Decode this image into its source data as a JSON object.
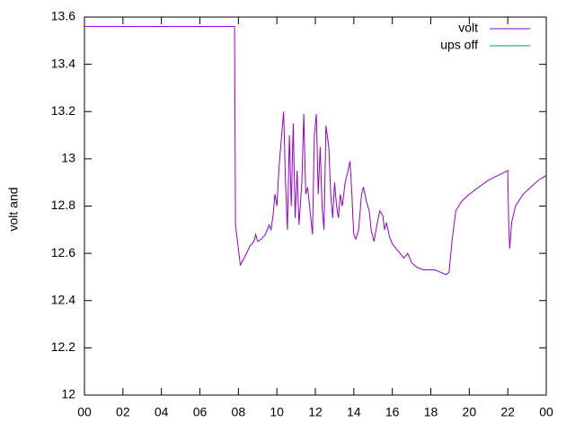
{
  "chart_data": {
    "type": "line",
    "ylabel": "volt and",
    "xlim": [
      0,
      24
    ],
    "xticks": [
      {
        "value": 0,
        "label": "00"
      },
      {
        "value": 2,
        "label": "02"
      },
      {
        "value": 4,
        "label": "04"
      },
      {
        "value": 6,
        "label": "06"
      },
      {
        "value": 8,
        "label": "08"
      },
      {
        "value": 10,
        "label": "10"
      },
      12,
      14,
      16,
      18,
      20,
      22,
      {
        "value": 24,
        "label": "00"
      }
    ],
    "ylim": [
      12,
      13.6
    ],
    "yticks": [
      12,
      12.2,
      12.4,
      12.6,
      12.8,
      13,
      13.2,
      13.4,
      13.6
    ],
    "legend": "top-right",
    "series": [
      {
        "name": "volt",
        "color": "#9400d3",
        "x": [
          0,
          7.8,
          7.85,
          8.0,
          8.1,
          8.3,
          8.6,
          8.8,
          8.9,
          9.0,
          9.2,
          9.4,
          9.5,
          9.6,
          9.7,
          9.8,
          9.9,
          10.0,
          10.1,
          10.2,
          10.35,
          10.45,
          10.55,
          10.65,
          10.75,
          10.85,
          10.95,
          11.05,
          11.15,
          11.3,
          11.4,
          11.5,
          11.6,
          11.7,
          11.85,
          11.95,
          12.05,
          12.15,
          12.25,
          12.35,
          12.45,
          12.55,
          12.7,
          12.8,
          12.9,
          13.0,
          13.1,
          13.2,
          13.3,
          13.4,
          13.55,
          13.7,
          13.8,
          13.9,
          13.95,
          14.0,
          14.1,
          14.25,
          14.4,
          14.5,
          14.65,
          14.8,
          14.9,
          15.05,
          15.2,
          15.35,
          15.5,
          15.6,
          15.7,
          15.85,
          16.0,
          16.2,
          16.4,
          16.6,
          16.8,
          17.0,
          17.3,
          17.6,
          17.9,
          18.2,
          18.5,
          18.8,
          18.95,
          19.1,
          19.3,
          19.6,
          20.0,
          20.5,
          21.0,
          21.5,
          22.0,
          22.05,
          22.1,
          22.2,
          22.4,
          22.8,
          23.2,
          23.6,
          24.0
        ],
        "values": [
          13.56,
          13.56,
          12.72,
          12.62,
          12.55,
          12.58,
          12.63,
          12.65,
          12.68,
          12.65,
          12.66,
          12.68,
          12.7,
          12.72,
          12.7,
          12.76,
          12.85,
          12.8,
          12.95,
          13.05,
          13.2,
          12.9,
          12.7,
          13.1,
          12.8,
          13.15,
          12.75,
          12.95,
          12.72,
          12.9,
          13.19,
          12.85,
          12.88,
          12.8,
          12.68,
          13.1,
          13.19,
          12.85,
          13.05,
          12.8,
          12.7,
          13.14,
          13.05,
          12.85,
          12.75,
          12.9,
          12.8,
          12.75,
          12.85,
          12.8,
          12.9,
          12.95,
          12.99,
          12.85,
          12.75,
          12.68,
          12.66,
          12.7,
          12.85,
          12.88,
          12.82,
          12.78,
          12.7,
          12.65,
          12.72,
          12.78,
          12.76,
          12.7,
          12.73,
          12.67,
          12.64,
          12.62,
          12.6,
          12.58,
          12.6,
          12.56,
          12.54,
          12.53,
          12.53,
          12.53,
          12.52,
          12.51,
          12.52,
          12.65,
          12.78,
          12.82,
          12.85,
          12.88,
          12.91,
          12.93,
          12.95,
          12.72,
          12.62,
          12.73,
          12.8,
          12.85,
          12.88,
          12.91,
          12.93
        ]
      },
      {
        "name": "ups off",
        "color": "#009e73",
        "x": [],
        "values": []
      }
    ]
  }
}
